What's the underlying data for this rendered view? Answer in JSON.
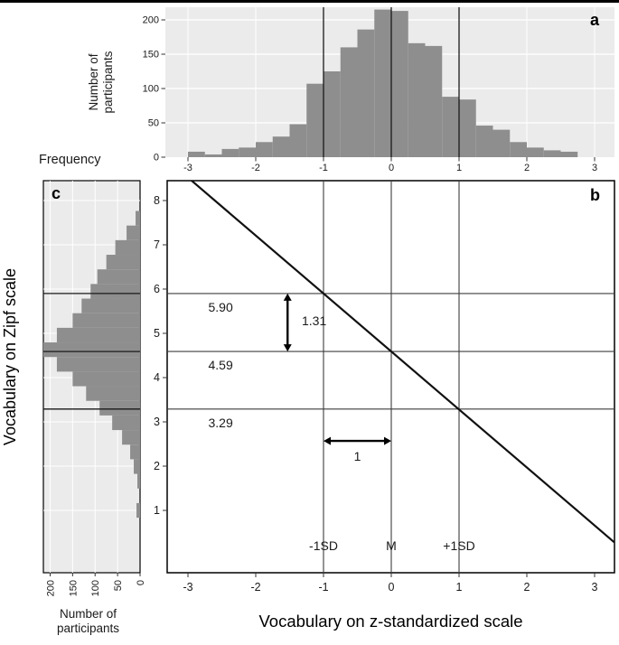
{
  "figure": {
    "left_ylabel": "Vocabulary on Zipf scale",
    "bottom_xlabel": "Vocabulary on z-standardized scale",
    "colors": {
      "bar": "#8e8e8e",
      "panel_bg": "#ebebeb",
      "line": "#111111",
      "grid": "#3d3d3d"
    }
  },
  "panels": {
    "a": {
      "label": "a",
      "ylabel_lines": [
        "Number of",
        "participants"
      ]
    },
    "b": {
      "label": "b"
    },
    "c": {
      "label": "c",
      "title": "Frequency",
      "xlabel_lines": [
        "Number of",
        "participants"
      ]
    }
  },
  "chart_data": [
    {
      "id": "panel-a",
      "type": "bar",
      "ylabel": "Number of participants",
      "xlabel": "Vocabulary on z-standardized scale",
      "bin_width": 0.25,
      "bin_centers": [
        -2.875,
        -2.625,
        -2.375,
        -2.125,
        -1.875,
        -1.625,
        -1.375,
        -1.125,
        -0.875,
        -0.625,
        -0.375,
        -0.125,
        0.125,
        0.375,
        0.625,
        0.875,
        1.125,
        1.375,
        1.625,
        1.875,
        2.125,
        2.375,
        2.625
      ],
      "values": [
        8,
        4,
        12,
        14,
        22,
        30,
        48,
        107,
        125,
        160,
        186,
        215,
        213,
        166,
        162,
        88,
        84,
        46,
        40,
        22,
        14,
        10,
        8
      ],
      "vlines": [
        -1,
        0,
        1
      ],
      "xticks": [
        -3,
        -2,
        -1,
        0,
        1,
        2,
        3
      ],
      "yticks": [
        0,
        50,
        100,
        150,
        200
      ],
      "xlim": [
        -3.33,
        3.29
      ],
      "ylim": [
        0,
        220
      ],
      "bar_color": "#8e8e8e",
      "panel_bg": "#ebebeb"
    },
    {
      "id": "panel-b",
      "type": "line",
      "regression": {
        "slope": -1.31,
        "intercept": 4.59
      },
      "xlim": [
        -3.31,
        3.29
      ],
      "ylim": [
        -0.41,
        8.45
      ],
      "xticks": [
        -3,
        -2,
        -1,
        0,
        1,
        2,
        3
      ],
      "yticks": [
        1,
        2,
        3,
        4,
        5,
        6,
        7,
        8
      ],
      "hlines": [
        {
          "y": 5.9,
          "label": "5.90"
        },
        {
          "y": 4.59,
          "label": "4.59"
        },
        {
          "y": 3.29,
          "label": "3.29"
        }
      ],
      "vlines": [
        {
          "x": -1,
          "label": "-1SD"
        },
        {
          "x": 0,
          "label": "M"
        },
        {
          "x": 1,
          "label": "+1SD"
        }
      ],
      "hline_label_x": -2.7,
      "vline_label_y": 0.1,
      "annotations": [
        {
          "kind": "arrow-vertical",
          "x": -1.53,
          "y_from": 4.59,
          "y_to": 5.9,
          "label": "1.31",
          "label_x": -1.32,
          "label_y": 5.18
        },
        {
          "kind": "arrow-horizontal",
          "x_from": -1,
          "x_to": 0,
          "y": 2.57,
          "label": "1",
          "label_x": -0.5,
          "label_y": 2.12
        }
      ],
      "xlabel": "Vocabulary on z-standardized scale",
      "ylabel": "Vocabulary on Zipf scale"
    },
    {
      "id": "panel-c",
      "type": "barh",
      "title": "Frequency",
      "xlabel": "Number of participants",
      "bin_width": 0.33,
      "bin_centers": [
        1.0,
        1.33,
        1.66,
        1.99,
        2.32,
        2.65,
        2.98,
        3.31,
        3.64,
        3.97,
        4.3,
        4.63,
        4.96,
        5.29,
        5.62,
        5.95,
        6.28,
        6.61,
        6.94,
        7.27,
        7.6
      ],
      "values": [
        8,
        0,
        6,
        14,
        22,
        40,
        62,
        90,
        120,
        150,
        185,
        215,
        185,
        150,
        130,
        110,
        95,
        75,
        55,
        30,
        10
      ],
      "hlines": [
        5.9,
        4.59,
        3.29
      ],
      "xticks": [
        200,
        150,
        100,
        50,
        0
      ],
      "xlim": [
        215,
        0
      ],
      "ylim": [
        -0.41,
        8.45
      ],
      "bar_color": "#8e8e8e",
      "panel_bg": "#ebebeb"
    }
  ]
}
